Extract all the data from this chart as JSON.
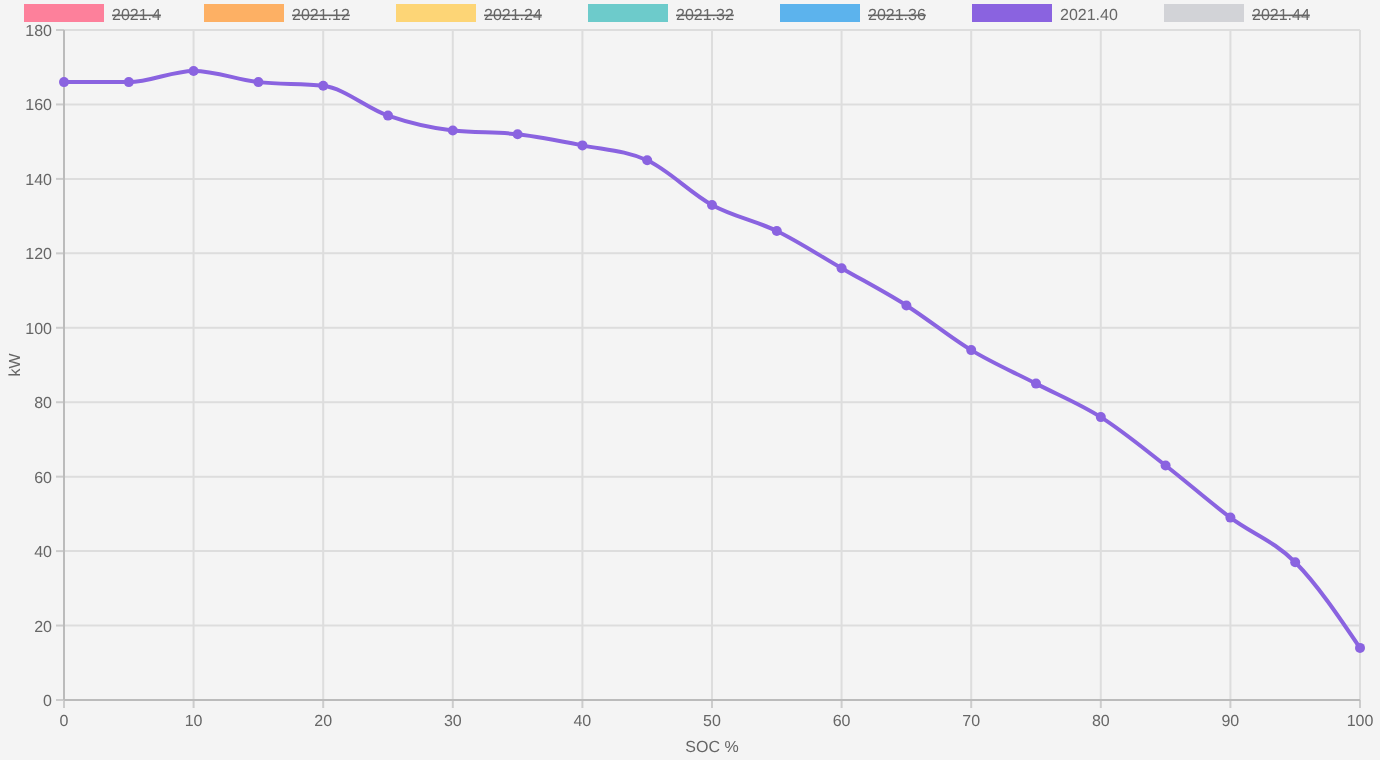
{
  "chart_data": {
    "type": "line",
    "xlabel": "SOC %",
    "ylabel": "kW",
    "x": [
      0,
      5,
      10,
      15,
      20,
      25,
      30,
      35,
      40,
      45,
      50,
      55,
      60,
      65,
      70,
      75,
      80,
      85,
      90,
      95,
      100
    ],
    "series": [
      {
        "name": "2021.4",
        "color": "#ff6384",
        "values": [
          null,
          null,
          null,
          null,
          null,
          null,
          null,
          null,
          null,
          null,
          null,
          null,
          null,
          null,
          null,
          null,
          null,
          null,
          null,
          null,
          null
        ]
      },
      {
        "name": "2021.12",
        "color": "#ff9f40",
        "values": [
          null,
          null,
          null,
          null,
          null,
          null,
          null,
          null,
          null,
          null,
          null,
          null,
          null,
          null,
          null,
          null,
          null,
          null,
          null,
          null,
          null
        ]
      },
      {
        "name": "2021.24",
        "color": "#ffcd56",
        "values": [
          null,
          null,
          null,
          null,
          null,
          null,
          null,
          null,
          null,
          null,
          null,
          null,
          null,
          null,
          null,
          null,
          null,
          null,
          null,
          null,
          null
        ]
      },
      {
        "name": "2021.32",
        "color": "#4bc0c0",
        "values": [
          null,
          null,
          null,
          null,
          null,
          null,
          null,
          null,
          null,
          null,
          null,
          null,
          null,
          null,
          null,
          null,
          null,
          null,
          null,
          null,
          null
        ]
      },
      {
        "name": "2021.36",
        "color": "#36a2eb",
        "values": [
          null,
          null,
          null,
          null,
          null,
          null,
          null,
          null,
          null,
          null,
          null,
          null,
          null,
          null,
          null,
          null,
          null,
          null,
          null,
          null,
          null
        ]
      },
      {
        "name": "2021.40",
        "color": "#8a63e0",
        "values": [
          166,
          166,
          169,
          166,
          165,
          157,
          153,
          152,
          149,
          145,
          133,
          126,
          116,
          106,
          94,
          85,
          76,
          63,
          49,
          37,
          14
        ]
      },
      {
        "name": "2021.44",
        "color": "#c9cbcf",
        "values": [
          null,
          null,
          null,
          null,
          null,
          null,
          null,
          null,
          null,
          null,
          null,
          null,
          null,
          null,
          null,
          null,
          null,
          null,
          null,
          null,
          null
        ]
      }
    ],
    "xlim": [
      0,
      100
    ],
    "xticks": [
      0,
      10,
      20,
      30,
      40,
      50,
      60,
      70,
      80,
      90,
      100
    ],
    "ylim": [
      0,
      180
    ],
    "yticks": [
      0,
      20,
      40,
      60,
      80,
      100,
      120,
      140,
      160,
      180
    ],
    "grid": true,
    "legend": "top",
    "marker": "circle",
    "line_style": "solid"
  }
}
